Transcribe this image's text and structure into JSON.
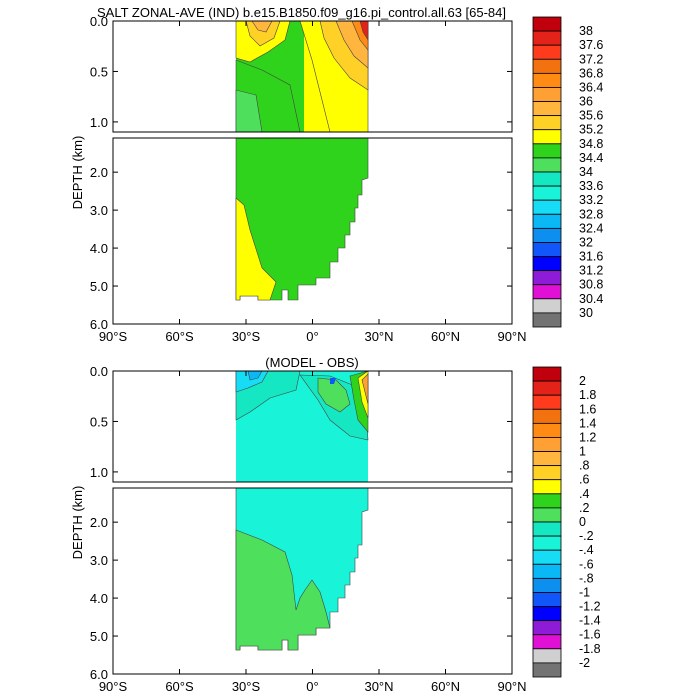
{
  "chart_data": [
    {
      "type": "heatmap",
      "title": "SALT ZONAL-AVE (IND) b.e15.B1850.f09_g16.pi_control.all.63 [65-84]",
      "ylabel": "DEPTH (km)",
      "x_ticks": [
        "90°S",
        "60°S",
        "30°S",
        "0°",
        "30°N",
        "60°N",
        "90°N"
      ],
      "x_range": [
        -90,
        90
      ],
      "y_range": [
        0,
        6
      ],
      "y_ticks_upper": [
        "0.0",
        "0.5",
        "1.0"
      ],
      "y_ticks_lower": [
        "2.0",
        "3.0",
        "4.0",
        "5.0",
        "6.0"
      ],
      "colorbar_levels": [
        "38",
        "37.6",
        "37.2",
        "36.8",
        "36.4",
        "36",
        "35.6",
        "35.2",
        "34.8",
        "34.4",
        "34",
        "33.6",
        "33.2",
        "32.8",
        "32.4",
        "32",
        "31.6",
        "31.2",
        "30.8",
        "30.4",
        "30"
      ],
      "colorbar_colors": [
        "#c0000c",
        "#e3231a",
        "#ff3b1e",
        "#f2720f",
        "#ff8b15",
        "#ffa035",
        "#ffb53e",
        "#ffd025",
        "#ffff00",
        "#2fd31b",
        "#4ee05c",
        "#15e7c3",
        "#19f3d8",
        "#17dcf6",
        "#0bb8f6",
        "#0d8ff0",
        "#1156f8",
        "#0000ff",
        "#8e1bd7",
        "#e011d5",
        "#d0d0d0",
        "#737373"
      ]
    },
    {
      "type": "heatmap",
      "title": "(MODEL - OBS)",
      "ylabel": "DEPTH (km)",
      "x_ticks": [
        "90°S",
        "60°S",
        "30°S",
        "0°",
        "30°N",
        "60°N",
        "90°N"
      ],
      "x_range": [
        -90,
        90
      ],
      "y_range": [
        0,
        6
      ],
      "y_ticks_upper": [
        "0.0",
        "0.5",
        "1.0"
      ],
      "y_ticks_lower": [
        "2.0",
        "3.0",
        "4.0",
        "5.0",
        "6.0"
      ],
      "colorbar_levels": [
        "2",
        "1.8",
        "1.6",
        "1.4",
        "1.2",
        "1",
        ".8",
        ".6",
        ".4",
        ".2",
        "0",
        "-.2",
        "-.4",
        "-.6",
        "-.8",
        "-1",
        "-1.2",
        "-1.4",
        "-1.6",
        "-1.8",
        "-2"
      ],
      "colorbar_colors": [
        "#c0000c",
        "#e3231a",
        "#ff3b1e",
        "#f2720f",
        "#ff8b15",
        "#ffa035",
        "#ffb53e",
        "#ffd025",
        "#ffff00",
        "#2fd31b",
        "#4ee05c",
        "#15e7c3",
        "#19f3d8",
        "#17dcf6",
        "#0bb8f6",
        "#0d8ff0",
        "#1156f8",
        "#0000ff",
        "#8e1bd7",
        "#e011d5",
        "#d0d0d0",
        "#737373"
      ]
    }
  ]
}
